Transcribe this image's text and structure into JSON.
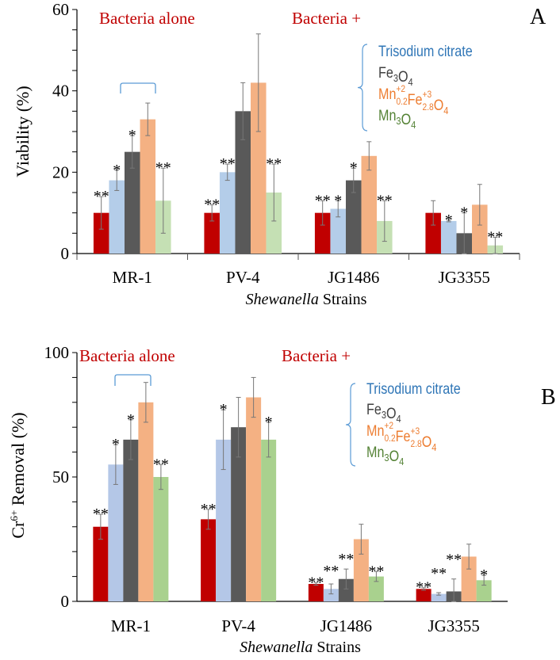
{
  "chart_data": [
    {
      "panel": "A",
      "type": "bar",
      "ylabel": "Viability (%)",
      "xlabel_italic": "Shewanella",
      "xlabel_rest": " Strains",
      "ylim": [
        0,
        60
      ],
      "yticks": [
        0,
        20,
        40,
        60
      ],
      "minor_step": 5,
      "categories": [
        "MR-1",
        "PV-4",
        "JG1486",
        "JG3355"
      ],
      "series": [
        {
          "name": "Bacteria alone",
          "color": "#c00000",
          "values": [
            10,
            10,
            10,
            10
          ],
          "errors": [
            4,
            2,
            3,
            3
          ],
          "stars": [
            "**",
            "**",
            "**",
            ""
          ]
        },
        {
          "name": "Trisodium citrate",
          "color": "#b4cde9",
          "values": [
            18,
            20,
            11,
            8
          ],
          "errors": [
            2.5,
            2,
            2,
            0.2
          ],
          "stars": [
            "*",
            "**",
            "*",
            "*"
          ]
        },
        {
          "name": "Fe3O4",
          "color": "#595959",
          "values": [
            25,
            35,
            18,
            5
          ],
          "errors": [
            4,
            7,
            3,
            5
          ],
          "stars": [
            "*",
            "",
            "*",
            "*"
          ]
        },
        {
          "name": "Mn0.2Fe2.8O4",
          "color": "#f4b183",
          "values": [
            33,
            42,
            24,
            12
          ],
          "errors": [
            4,
            12,
            3.5,
            5
          ],
          "stars": [
            "",
            "",
            "",
            ""
          ]
        },
        {
          "name": "Mn3O4",
          "color": "#c5e0b4",
          "values": [
            13,
            15,
            8,
            2
          ],
          "errors": [
            8,
            7,
            5,
            2
          ],
          "stars": [
            "**",
            "**",
            "**",
            "**"
          ]
        }
      ]
    },
    {
      "panel": "B",
      "type": "bar",
      "ylabel_main": "Cr",
      "ylabel_sup": "6+",
      "ylabel_rest": " Removal (%)",
      "xlabel_italic": "Shewanella",
      "xlabel_rest": " Strains",
      "ylim": [
        0,
        100
      ],
      "yticks": [
        0,
        50,
        100
      ],
      "minor_step": 10,
      "categories": [
        "MR-1",
        "PV-4",
        "JG1486",
        "JG3355"
      ],
      "series": [
        {
          "name": "Bacteria alone",
          "color": "#c00000",
          "values": [
            30,
            33,
            7,
            5
          ],
          "errors": [
            5,
            4,
            0.5,
            0.5
          ],
          "stars": [
            "**",
            "**",
            "**",
            "**"
          ]
        },
        {
          "name": "Trisodium citrate",
          "color": "#b4c7e7",
          "values": [
            55,
            65,
            5,
            3
          ],
          "errors": [
            8,
            12,
            2,
            0.5
          ],
          "stars": [
            "*",
            "*",
            "**",
            "**"
          ]
        },
        {
          "name": "Fe3O4",
          "color": "#595959",
          "values": [
            65,
            70,
            9,
            4
          ],
          "errors": [
            8,
            12,
            4,
            5
          ],
          "stars": [
            "*",
            "",
            "**",
            "**"
          ]
        },
        {
          "name": "Mn0.2Fe2.8O4",
          "color": "#f4b183",
          "values": [
            80,
            82,
            25,
            18
          ],
          "errors": [
            8,
            8,
            6,
            5
          ],
          "stars": [
            "",
            "",
            "",
            ""
          ]
        },
        {
          "name": "Mn3O4",
          "color": "#a9d18e",
          "values": [
            50,
            65,
            10,
            8.5
          ],
          "errors": [
            5,
            7,
            2,
            2
          ],
          "stars": [
            "**",
            "*",
            "**",
            "*"
          ]
        }
      ]
    }
  ],
  "annotations": {
    "bacteria_alone": "Bacteria alone",
    "bacteria_plus": "Bacteria +",
    "panel_a": "A",
    "panel_b": "B",
    "annotation_color": "#c00000",
    "bracket_color": "#5b9bd5"
  },
  "legend": [
    {
      "color": "#2e75b6",
      "parts": [
        {
          "t": "Trisodium citrate"
        }
      ]
    },
    {
      "color": "#404040",
      "parts": [
        {
          "t": "Fe"
        },
        {
          "t": "3",
          "sub": true
        },
        {
          "t": "O"
        },
        {
          "t": "4",
          "sub": true
        }
      ]
    },
    {
      "color": "#ed7d31",
      "parts": [
        {
          "t": "Mn"
        },
        {
          "t": "+2",
          "sup": true,
          "stack": "0.2"
        },
        {
          "t": "Fe"
        },
        {
          "t": "+3",
          "sup": true,
          "stack": "2.8"
        },
        {
          "t": "O"
        },
        {
          "t": "4",
          "sub": true
        }
      ]
    },
    {
      "color": "#548235",
      "parts": [
        {
          "t": "Mn"
        },
        {
          "t": "3",
          "sub": true
        },
        {
          "t": "O"
        },
        {
          "t": "4",
          "sub": true
        }
      ]
    }
  ]
}
